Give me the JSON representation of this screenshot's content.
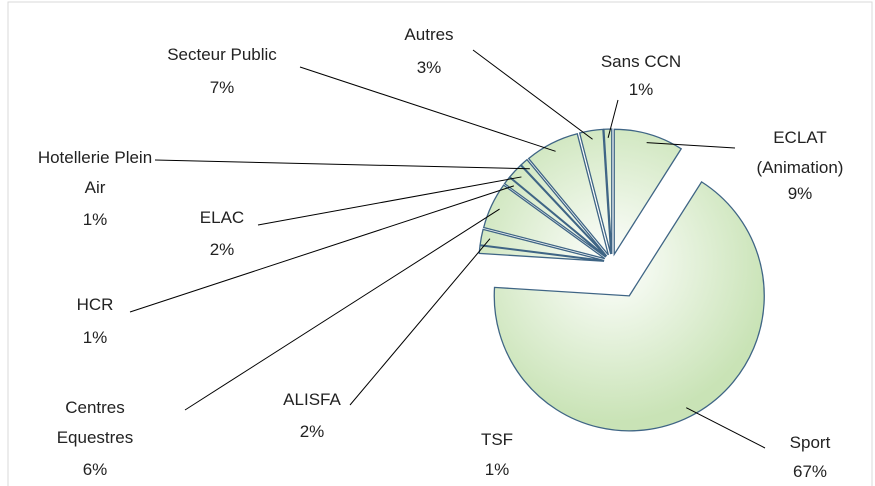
{
  "chart_data": {
    "type": "pie",
    "categories": [
      "ECLAT (Animation)",
      "Sport",
      "TSF",
      "ALISFA",
      "Centres Equestres",
      "HCR",
      "ELAC",
      "Hotellerie Plein Air",
      "Secteur Public",
      "Autres",
      "Sans CCN"
    ],
    "values": [
      9,
      67,
      1,
      2,
      6,
      1,
      2,
      1,
      7,
      3,
      1
    ],
    "value_labels": [
      "9%",
      "67%",
      "1%",
      "2%",
      "6%",
      "1%",
      "2%",
      "1%",
      "7%",
      "3%",
      "1%"
    ],
    "color": "#c9e3b6"
  }
}
